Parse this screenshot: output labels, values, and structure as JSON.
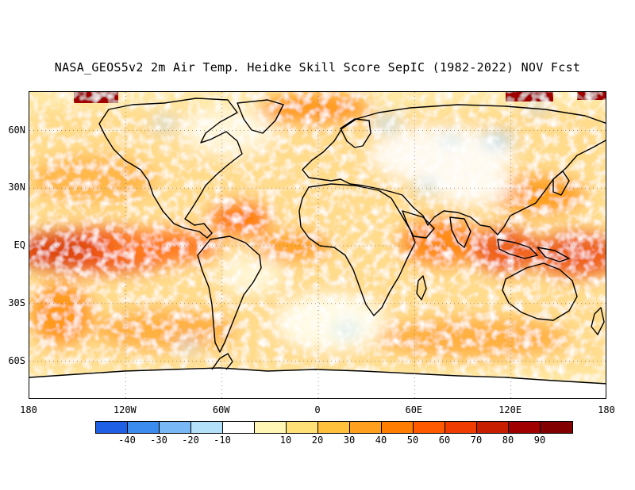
{
  "title": "NASA_GEOS5v2 2m Air Temp. Heidke Skill Score SepIC (1982-2022) NOV Fcst",
  "map": {
    "lat_labels": [
      "60N",
      "30N",
      "EQ",
      "30S",
      "60S"
    ],
    "lat_values": [
      60,
      30,
      0,
      -30,
      -60
    ],
    "lon_labels": [
      "180",
      "120W",
      "60W",
      "0",
      "60E",
      "120E",
      "180"
    ],
    "lon_values": [
      -180,
      -120,
      -60,
      0,
      60,
      120,
      180
    ],
    "lat_range": [
      -80,
      80
    ],
    "lon_range": [
      -180,
      180
    ],
    "grid": "dotted"
  },
  "colorbar": {
    "colors": [
      "#1e5fe6",
      "#3c8cf0",
      "#78b9f5",
      "#b4e1fa",
      "#ffffff",
      "#fff5b4",
      "#ffe178",
      "#ffc03c",
      "#ffa01e",
      "#ff7d00",
      "#ff5a00",
      "#f03c00",
      "#c81e00",
      "#a00000",
      "#820000"
    ],
    "labels": [
      "-40",
      "-30",
      "-20",
      "-10",
      "10",
      "20",
      "30",
      "40",
      "50",
      "60",
      "70",
      "80",
      "90"
    ]
  }
}
